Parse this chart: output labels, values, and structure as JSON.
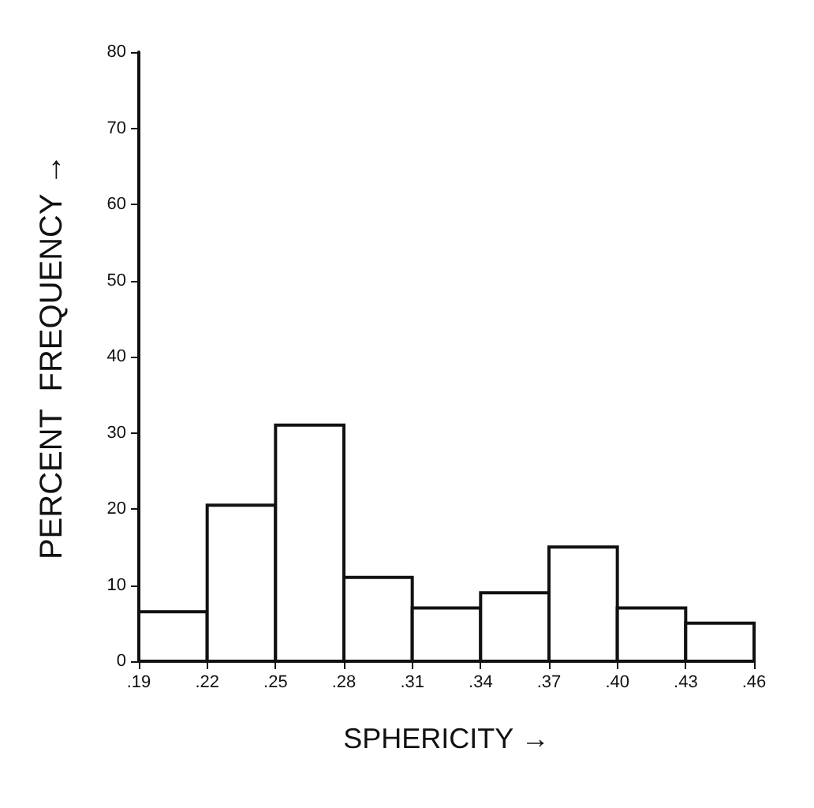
{
  "chart_data": {
    "type": "histogram",
    "xlabel": "SPHERICITY →",
    "ylabel": "PERCENT  FREQUENCY →",
    "bins": [
      0.19,
      0.22,
      0.25,
      0.28,
      0.31,
      0.34,
      0.37,
      0.4,
      0.43,
      0.46
    ],
    "values": [
      6.5,
      20.5,
      31,
      11,
      7,
      9,
      15,
      7,
      5
    ],
    "color": "#ffffff",
    "xlim": [
      0.19,
      0.46
    ],
    "xticks": [
      {
        "value": 0.19,
        "label": ".19"
      },
      {
        "value": 0.22,
        "label": ".22"
      },
      {
        "value": 0.25,
        "label": ".25"
      },
      {
        "value": 0.28,
        "label": ".28"
      },
      {
        "value": 0.31,
        "label": ".31"
      },
      {
        "value": 0.34,
        "label": ".34"
      },
      {
        "value": 0.37,
        "label": ".37"
      },
      {
        "value": 0.4,
        "label": ".40"
      },
      {
        "value": 0.43,
        "label": ".43"
      },
      {
        "value": 0.46,
        "label": ".46"
      }
    ],
    "ylim": [
      0,
      80
    ],
    "yticks": [
      0,
      10,
      20,
      30,
      40,
      50,
      60,
      70,
      80
    ],
    "grid": false
  }
}
